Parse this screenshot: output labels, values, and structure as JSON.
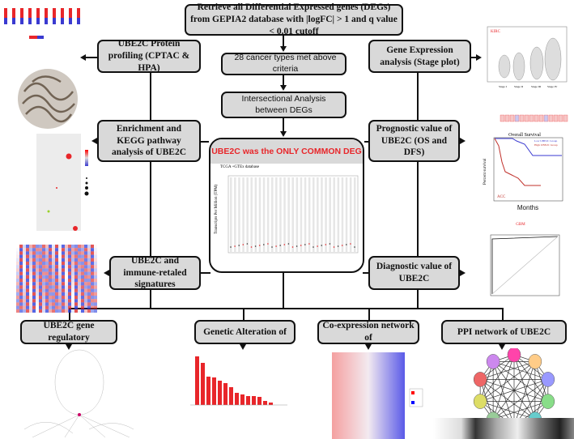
{
  "flow": {
    "top": "Retrieve all Differential Expressed genes (DEGs) from GEPIA2 database with |logFC| > 1 and q value < 0.01 cutoff",
    "step2": "28 cancer types met above criteria",
    "step3": "Intersectional Analysis between DEGs",
    "center_title": "UBE2C was the ONLY COMMON DEG",
    "center_subtitle": "TCGA +GTEx database",
    "center_ylabel": "Transcripts Per Million (TPM)"
  },
  "left": {
    "protein": "UBE2C Protein profiling (CPTAC & HPA)",
    "enrichment": "Enrichment and KEGG pathway analysis of UBE2C",
    "immune": "UBE2C and immune-retaled signatures"
  },
  "right": {
    "expression": "Gene Expression analysis (Stage plot)",
    "prognostic": "Prognostic value of UBE2C (OS and DFS)",
    "diagnostic": "Diagnostic value of UBE2C"
  },
  "bottom": {
    "regulatory": "UBE2C gene regulatory",
    "alteration": "Genetic Alteration of",
    "coexpression": "Co-expression network of",
    "ppi": "PPI network of UBE2C"
  },
  "figures": {
    "survival_title": "Overall Survival",
    "survival_ylabel": "Percent survival",
    "survival_xlabel": "Months",
    "survival_legend": [
      "Low UBE2C Group",
      "High UBE2C Group"
    ],
    "survival_tag": "ACC",
    "stage_tag": "KIRC",
    "stage_labels": [
      "Stage I",
      "Stage II",
      "Stage III",
      "Stage IV"
    ],
    "roc_tag": "GBM",
    "colors": {
      "box": "#d9d9d9",
      "accent_red": "#e8262a",
      "blue": "#3a3ad0"
    }
  }
}
